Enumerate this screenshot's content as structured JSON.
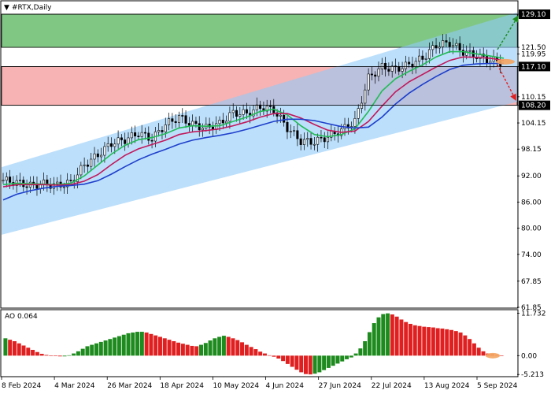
{
  "window": {
    "title": "#RTX,Daily",
    "ao_label": "AO 0.064"
  },
  "colors": {
    "green_band": "#4CAF50",
    "red_band": "#F28B8B",
    "channel": "#90CAF9",
    "ma_fast": "#22BB55",
    "ma_mid": "#C2185B",
    "ma_slow": "#1E3FCC",
    "ao_up": "#1E8B1E",
    "ao_down": "#E02020",
    "arrow_up": "#1E8B1E",
    "arrow_down": "#E02020"
  },
  "chart_data": [
    {
      "type": "line",
      "name": "price",
      "ylim": [
        61.85,
        132.0
      ],
      "y_ticks": [
        129.1,
        121.5,
        119.95,
        117.1,
        110.15,
        108.2,
        104.15,
        98.15,
        92.0,
        86.0,
        80.0,
        74.0,
        67.85,
        61.85
      ],
      "y_tick_labels": [
        "129.10",
        "121.50",
        "119.95",
        "117.10",
        "110.15",
        "108.20",
        "104.15",
        "98.15",
        "92.00",
        "86.00",
        "80.00",
        "74.00",
        "67.85",
        "61.85"
      ],
      "x_labels": [
        "8 Feb 2024",
        "4 Mar 2024",
        "26 Mar 2024",
        "18 Apr 2024",
        "10 May 2024",
        "4 Jun 2024",
        "27 Jun 2024",
        "22 Jul 2024",
        "13 Aug 2024",
        "5 Sep 2024"
      ],
      "zones": [
        {
          "name": "green",
          "from": 121.5,
          "to": 129.1
        },
        {
          "name": "red",
          "from": 108.2,
          "to": 117.1
        }
      ],
      "highlighted_levels": [
        {
          "value": 129.1,
          "label": "129.10",
          "style": "box"
        },
        {
          "value": 121.5,
          "label": "121.50",
          "style": "plain"
        },
        {
          "value": 119.95,
          "label": "119.95",
          "style": "plain"
        },
        {
          "value": 117.1,
          "label": "117.10",
          "style": "box"
        },
        {
          "value": 108.2,
          "label": "108.20",
          "style": "box"
        }
      ],
      "channel": {
        "start_low": 78.5,
        "start_high": 94.0,
        "end_low": 109.0,
        "end_high": 129.5
      },
      "series": [
        {
          "name": "close",
          "values": [
            91.0,
            90.5,
            89.8,
            90.2,
            89.8,
            90.5,
            94.5,
            96.8,
            99.5,
            100.3,
            101.8,
            100.5,
            103.8,
            105.5,
            103.8,
            103.0,
            104.0,
            106.5,
            106.3,
            107.8,
            107.2,
            103.0,
            100.0,
            99.8,
            101.0,
            102.5,
            104.5,
            114.5,
            117.0,
            116.5,
            117.5,
            119.0,
            122.0,
            122.5,
            120.5,
            119.5,
            118.5,
            118.0
          ]
        },
        {
          "name": "ma_fast",
          "values": [
            90.0,
            90.3,
            90.2,
            90.1,
            90.0,
            90.3,
            92.0,
            94.5,
            97.0,
            99.0,
            100.3,
            100.8,
            101.7,
            103.0,
            103.5,
            103.4,
            103.5,
            104.5,
            105.5,
            106.8,
            107.3,
            106.0,
            103.5,
            101.5,
            101.0,
            101.5,
            102.8,
            106.8,
            111.5,
            114.3,
            116.0,
            117.5,
            119.3,
            120.5,
            120.5,
            120.0,
            119.5,
            119.0
          ]
        },
        {
          "name": "ma_mid",
          "values": [
            89.5,
            90.0,
            90.0,
            90.0,
            89.9,
            90.0,
            90.8,
            92.3,
            94.6,
            96.7,
            98.2,
            99.2,
            100.2,
            101.5,
            102.1,
            102.4,
            102.8,
            103.5,
            104.4,
            105.5,
            106.3,
            106.3,
            105.3,
            103.8,
            102.5,
            102.0,
            102.3,
            104.5,
            108.0,
            111.3,
            113.6,
            115.3,
            117.0,
            118.5,
            119.3,
            119.2,
            119.0,
            118.5
          ]
        },
        {
          "name": "ma_slow",
          "values": [
            86.5,
            87.8,
            88.6,
            89.2,
            89.6,
            89.8,
            90.1,
            90.9,
            92.4,
            94.1,
            95.7,
            97.0,
            98.1,
            99.3,
            100.2,
            100.8,
            101.3,
            101.9,
            102.7,
            103.6,
            104.5,
            105.0,
            105.0,
            104.7,
            104.0,
            103.3,
            103.0,
            103.2,
            105.5,
            108.5,
            111.0,
            113.0,
            114.8,
            116.4,
            117.4,
            117.7,
            117.8,
            117.8
          ]
        }
      ]
    },
    {
      "type": "bar",
      "name": "AO",
      "ylim": [
        -5.6,
        12.5
      ],
      "y_ticks": [
        11.732,
        0.0,
        -5.213
      ],
      "y_tick_labels": [
        "11.732",
        "0.00",
        "-5.213"
      ],
      "values": [
        4.8,
        4.4,
        4.0,
        3.4,
        2.8,
        2.2,
        1.6,
        1.0,
        0.5,
        0.2,
        0.0,
        -0.1,
        -0.2,
        -0.2,
        0.1,
        0.6,
        1.2,
        1.9,
        2.6,
        3.0,
        3.4,
        3.8,
        4.2,
        4.6,
        5.0,
        5.4,
        5.8,
        6.2,
        6.4,
        6.6,
        6.6,
        6.4,
        6.0,
        5.6,
        5.2,
        4.8,
        4.4,
        4.0,
        3.6,
        3.3,
        3.0,
        2.7,
        2.6,
        3.0,
        3.5,
        4.2,
        4.8,
        5.2,
        5.5,
        5.2,
        4.8,
        4.3,
        3.7,
        3.0,
        2.4,
        1.8,
        1.1,
        0.6,
        0.1,
        -0.3,
        -0.8,
        -1.5,
        -2.3,
        -3.1,
        -3.9,
        -4.6,
        -5.1,
        -5.2,
        -5.0,
        -4.6,
        -4.0,
        -3.4,
        -2.8,
        -2.2,
        -1.6,
        -1.0,
        -0.5,
        0.6,
        2.0,
        4.0,
        6.5,
        9.0,
        10.6,
        11.5,
        11.7,
        11.4,
        10.8,
        10.0,
        9.3,
        8.8,
        8.4,
        8.2,
        8.0,
        7.9,
        7.8,
        7.6,
        7.5,
        7.3,
        7.1,
        6.8,
        6.4,
        5.6,
        4.6,
        3.4,
        2.2,
        1.2,
        0.6,
        0.4,
        0.2,
        0.064
      ]
    }
  ]
}
